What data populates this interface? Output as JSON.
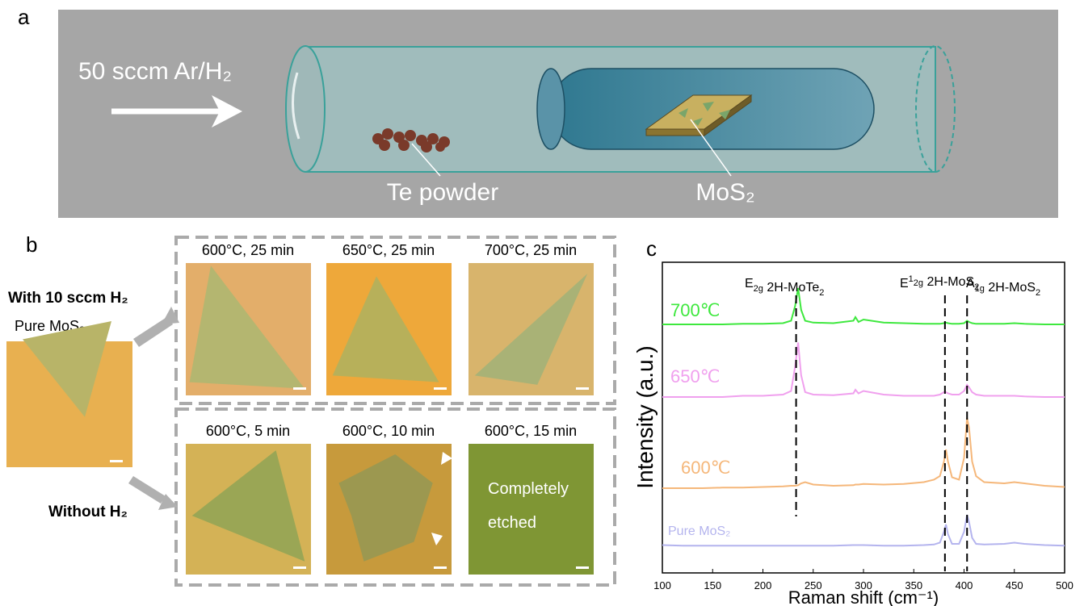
{
  "panels": {
    "a": "a",
    "b": "b",
    "c": "c"
  },
  "diagram": {
    "flow_label": "50 sccm Ar/H₂",
    "powder_label": "Te powder",
    "substrate_label": "MoS₂"
  },
  "micrographs": {
    "row_labels": [
      "With 10 sccm H₂",
      "Without H₂"
    ],
    "reference": "Pure MoS₂",
    "images": [
      [
        "600°C, 25 min",
        "650°C, 25 min",
        "700°C, 25 min"
      ],
      [
        "600°C, 5 min",
        "600°C, 10 min",
        "600°C, 15 min"
      ]
    ],
    "overlay": [
      "Completely",
      "etched"
    ]
  },
  "chart_data": {
    "type": "line",
    "xlabel": "Raman shift (cm⁻¹)",
    "ylabel": "Intensity (a.u.)",
    "xlim": [
      100,
      500
    ],
    "xticks": [
      100,
      150,
      200,
      250,
      300,
      350,
      400,
      450,
      500
    ],
    "x": [
      100,
      120,
      140,
      160,
      180,
      200,
      220,
      228,
      232,
      235,
      238,
      242,
      250,
      270,
      290,
      292,
      295,
      300,
      320,
      340,
      360,
      370,
      376,
      380,
      382,
      384,
      388,
      395,
      400,
      403,
      405,
      408,
      412,
      420,
      440,
      450,
      460,
      480,
      500
    ],
    "series": [
      {
        "name": "700℃",
        "color": "#3ee83e",
        "values": [
          0,
          0,
          0,
          0,
          0.05,
          0.05,
          0.1,
          0.3,
          1.5,
          3,
          1.2,
          0.3,
          0.15,
          0.1,
          0.3,
          0.6,
          0.2,
          0.4,
          0.15,
          0.1,
          0.05,
          0.05,
          0.05,
          0.1,
          0.15,
          0.1,
          0.05,
          0.05,
          0.1,
          0.3,
          0.2,
          0.1,
          0.05,
          0.05,
          0.05,
          0.1,
          0.05,
          0,
          0
        ]
      },
      {
        "name": "650℃",
        "color": "#f0a0ee",
        "values": [
          0,
          0,
          0,
          0,
          0.1,
          0.1,
          0.2,
          0.5,
          2.5,
          4.5,
          1.8,
          0.4,
          0.2,
          0.15,
          0.3,
          0.6,
          0.3,
          0.5,
          0.2,
          0.1,
          0.1,
          0.1,
          0.2,
          0.4,
          0.4,
          0.3,
          0.2,
          0.2,
          0.5,
          1,
          0.8,
          0.4,
          0.2,
          0.1,
          0.1,
          0.1,
          0.05,
          0,
          0
        ]
      },
      {
        "name": "600℃",
        "color": "#f5b77a",
        "values": [
          0,
          0,
          0,
          0.05,
          0.05,
          0.1,
          0.15,
          0.2,
          0.2,
          0.25,
          0.4,
          0.5,
          0.3,
          0.2,
          0.25,
          0.3,
          0.3,
          0.35,
          0.3,
          0.35,
          0.5,
          0.7,
          1,
          2.2,
          3.2,
          2.2,
          0.9,
          0.7,
          2.5,
          5.8,
          5,
          2.2,
          1,
          0.5,
          0.4,
          0.5,
          0.4,
          0.2,
          0.1
        ]
      },
      {
        "name": "Pure MoS₂",
        "color": "#b4b4ee",
        "values": [
          0.1,
          0.05,
          0.05,
          0.05,
          0.05,
          0.05,
          0.05,
          0.05,
          0.05,
          0.05,
          0.05,
          0.05,
          0.05,
          0.05,
          0.1,
          0.1,
          0.1,
          0.1,
          0.05,
          0.05,
          0.1,
          0.15,
          0.3,
          1.2,
          1.8,
          1,
          0.2,
          0.2,
          1.2,
          2.6,
          2,
          0.7,
          0.2,
          0.15,
          0.2,
          0.3,
          0.2,
          0.1,
          0.05
        ]
      }
    ],
    "annotations": [
      {
        "x": 233,
        "label": [
          {
            "t": "E"
          },
          {
            "sub": "2g"
          },
          {
            "t": " 2H-MoTe"
          },
          {
            "sub": "2"
          }
        ]
      },
      {
        "x": 381,
        "label": [
          {
            "t": "E"
          },
          {
            "sup": "1"
          },
          {
            "sub": "2g"
          },
          {
            "t": " 2H-MoS"
          },
          {
            "sub": "2"
          }
        ]
      },
      {
        "x": 403,
        "label": [
          {
            "t": "A"
          },
          {
            "sub": "1g"
          },
          {
            "t": " 2H-MoS"
          },
          {
            "sub": "2"
          }
        ]
      }
    ]
  }
}
